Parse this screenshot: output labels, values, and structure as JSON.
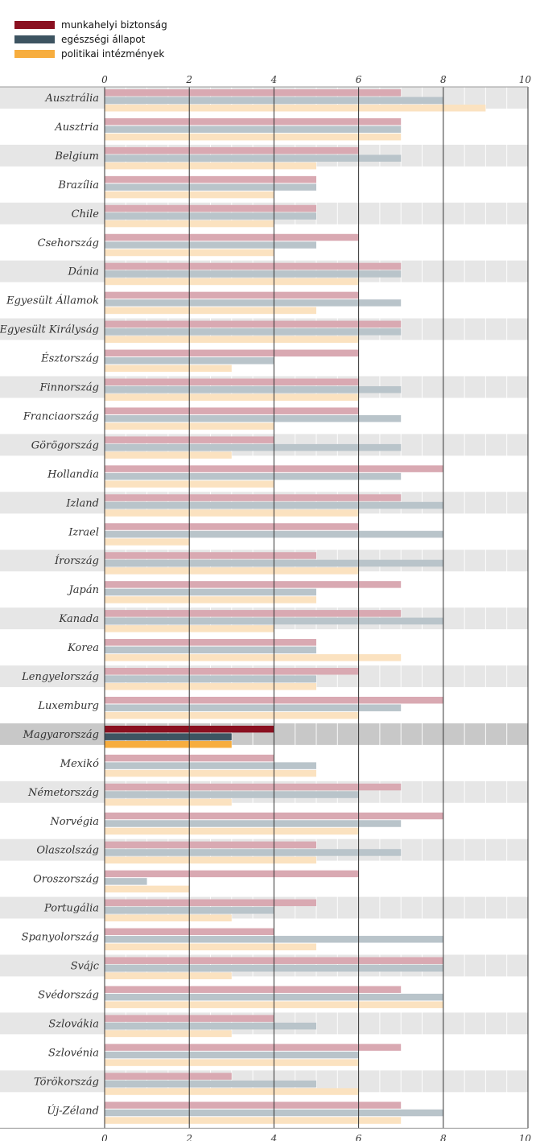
{
  "chart_data": {
    "type": "bar",
    "orientation": "horizontal",
    "title": "",
    "xlabel": "",
    "ylabel": "",
    "xlim": [
      0,
      10
    ],
    "xticks": [
      0,
      2,
      4,
      6,
      8,
      10
    ],
    "grid": "vertical",
    "legend_position": "top-left",
    "highlighted_category": "Magyarország",
    "categories": [
      "Ausztrália",
      "Ausztria",
      "Belgium",
      "Brazília",
      "Chile",
      "Csehország",
      "Dánia",
      "Egyesült Államok",
      "Egyesült Királyság",
      "Észtország",
      "Finnország",
      "Franciaország",
      "Görögország",
      "Hollandia",
      "Izland",
      "Izrael",
      "Írország",
      "Japán",
      "Kanada",
      "Korea",
      "Lengyelország",
      "Luxemburg",
      "Magyarország",
      "Mexikó",
      "Németország",
      "Norvégia",
      "Olaszolszág",
      "Oroszország",
      "Portugália",
      "Spanyolország",
      "Svájc",
      "Svédország",
      "Szlovákia",
      "Szlovénia",
      "Törökország",
      "Új-Zéland"
    ],
    "series": [
      {
        "name": "munkahelyi biztonság",
        "color": "#8a1020",
        "faded_color": "#d9a9b2",
        "values": [
          7,
          7,
          6,
          5,
          5,
          6,
          7,
          6,
          7,
          6,
          6,
          6,
          4,
          8,
          7,
          6,
          5,
          7,
          7,
          5,
          6,
          8,
          4,
          4,
          7,
          8,
          5,
          6,
          5,
          4,
          8,
          7,
          4,
          7,
          3,
          7
        ]
      },
      {
        "name": "egészségi állapot",
        "color": "#3d5461",
        "faded_color": "#b9c4ca",
        "values": [
          8,
          7,
          7,
          5,
          5,
          5,
          7,
          7,
          7,
          4,
          7,
          7,
          7,
          7,
          8,
          8,
          8,
          5,
          8,
          5,
          5,
          7,
          3,
          5,
          6,
          7,
          7,
          1,
          4,
          8,
          8,
          8,
          5,
          6,
          5,
          8
        ]
      },
      {
        "name": "politikai intézmények",
        "color": "#f7ad3e",
        "faded_color": "#fbe2c0",
        "values": [
          9,
          7,
          5,
          4,
          4,
          4,
          6,
          5,
          6,
          3,
          6,
          4,
          3,
          4,
          6,
          2,
          6,
          5,
          4,
          7,
          5,
          6,
          3,
          5,
          3,
          6,
          5,
          2,
          3,
          5,
          3,
          8,
          3,
          6,
          6,
          7
        ]
      }
    ]
  }
}
